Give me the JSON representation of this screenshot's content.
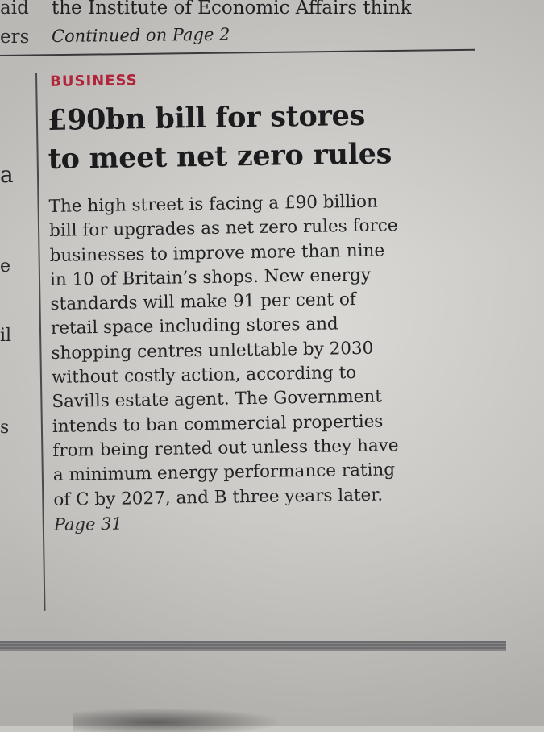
{
  "top_strip": {
    "left_fragments": [
      "aid",
      "ers"
    ],
    "line1": "the Institute of Economic Affairs think",
    "line2": "Continued on Page 2"
  },
  "left_column_fragments": [
    "a",
    "e",
    "il",
    "s"
  ],
  "story": {
    "category": "BUSINESS",
    "headline_lines": [
      "£90bn bill for stores",
      "to meet net zero rules"
    ],
    "body_lines": [
      "The high street is facing a £90 billion",
      "bill for upgrades as net zero rules force",
      "businesses to improve more than nine",
      "in 10 of Britain’s shops. New energy",
      "standards will make 91 per cent of",
      "retail space including stores and",
      "shopping centres unlettable by 2030",
      "without costly action, according to",
      "Savills estate agent. The Government",
      "intends to ban commercial properties",
      "from being rented out unless they have",
      "a minimum energy performance rating",
      "of C by 2027, and B three years later."
    ],
    "page_ref": "Page 31"
  },
  "colors": {
    "category_red": "#b1243a",
    "ink": "#1f1f22",
    "paper": "#cfcdc9"
  }
}
